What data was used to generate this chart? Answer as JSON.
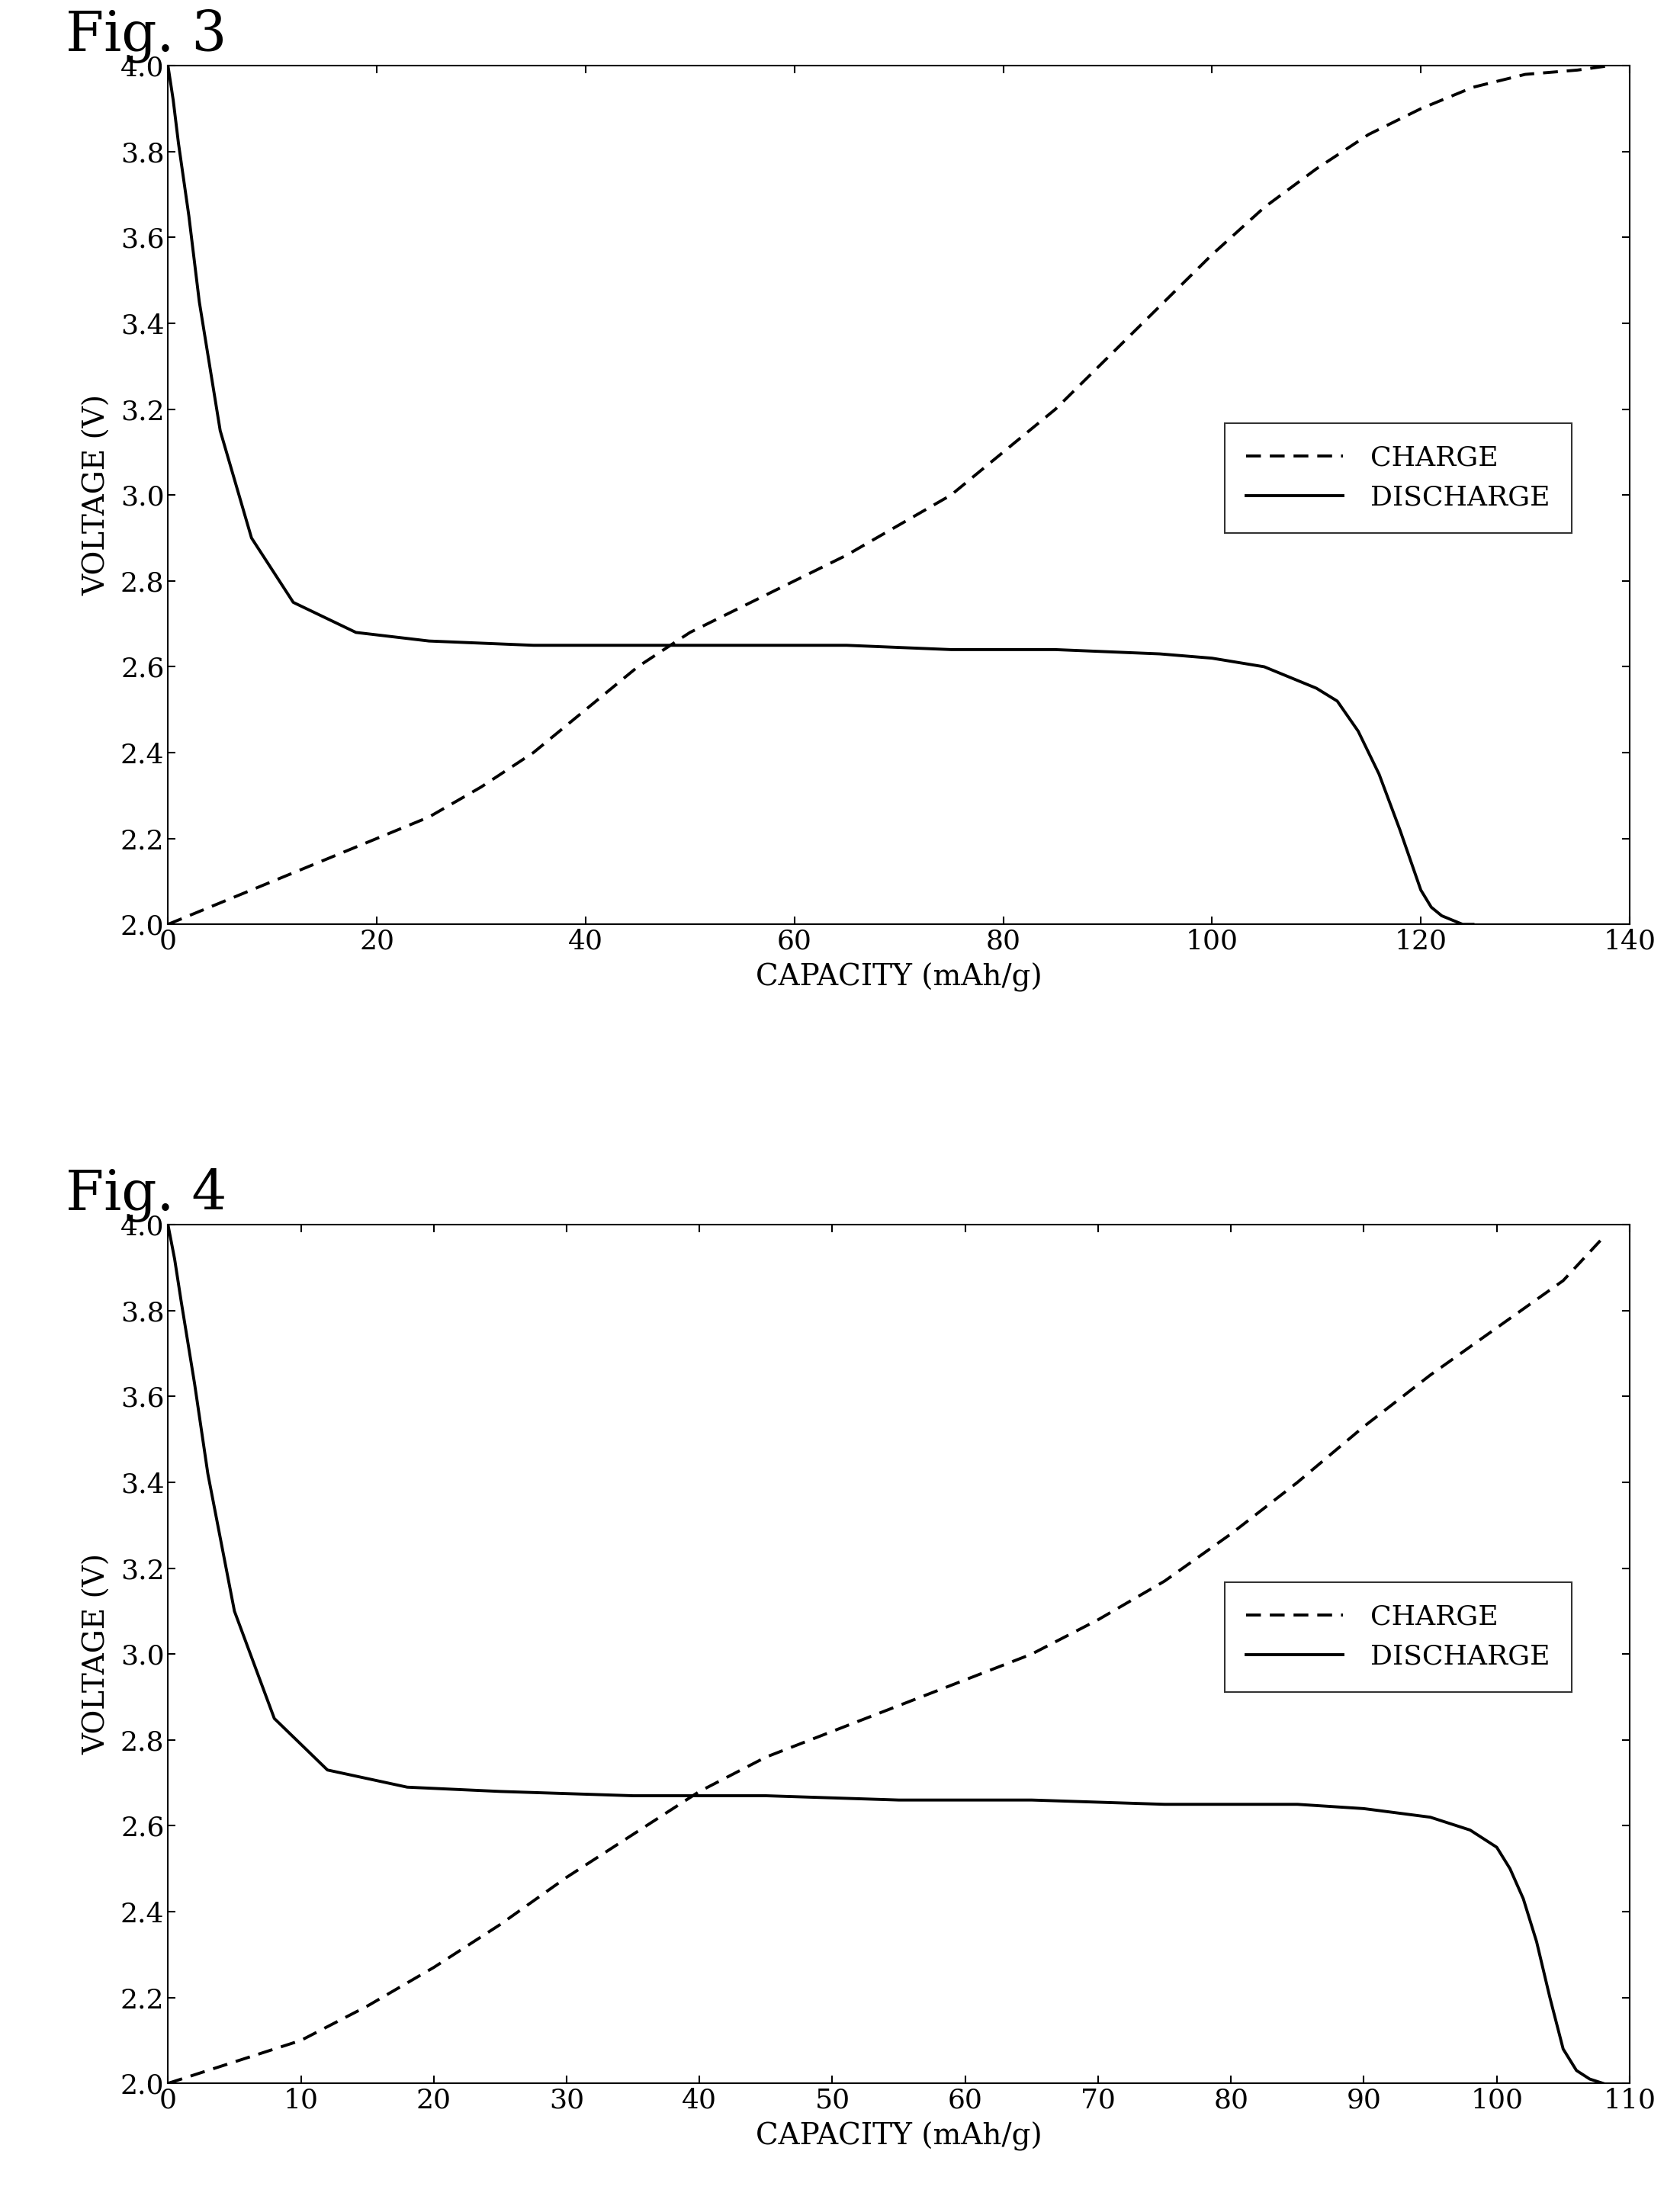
{
  "fig3": {
    "title": "Fig. 3",
    "charge_x": [
      0,
      5,
      10,
      15,
      20,
      25,
      30,
      35,
      40,
      45,
      50,
      55,
      60,
      65,
      70,
      75,
      80,
      85,
      90,
      95,
      100,
      105,
      110,
      115,
      120,
      125,
      130,
      135,
      138
    ],
    "charge_y": [
      2.0,
      2.05,
      2.1,
      2.15,
      2.2,
      2.25,
      2.32,
      2.4,
      2.5,
      2.6,
      2.68,
      2.74,
      2.8,
      2.86,
      2.93,
      3.0,
      3.1,
      3.2,
      3.32,
      3.44,
      3.56,
      3.67,
      3.76,
      3.84,
      3.9,
      3.95,
      3.98,
      3.99,
      4.0
    ],
    "discharge_x": [
      0,
      0.5,
      1,
      2,
      3,
      5,
      8,
      12,
      18,
      25,
      35,
      45,
      55,
      65,
      75,
      85,
      95,
      100,
      105,
      108,
      110,
      112,
      114,
      116,
      118,
      120,
      121,
      122,
      123,
      124,
      125
    ],
    "discharge_y": [
      4.0,
      3.92,
      3.82,
      3.65,
      3.45,
      3.15,
      2.9,
      2.75,
      2.68,
      2.66,
      2.65,
      2.65,
      2.65,
      2.65,
      2.64,
      2.64,
      2.63,
      2.62,
      2.6,
      2.57,
      2.55,
      2.52,
      2.45,
      2.35,
      2.22,
      2.08,
      2.04,
      2.02,
      2.01,
      2.0,
      2.0
    ],
    "xlim": [
      0,
      140
    ],
    "ylim": [
      2.0,
      4.0
    ],
    "xticks": [
      0,
      20,
      40,
      60,
      80,
      100,
      120,
      140
    ],
    "yticks": [
      2.0,
      2.2,
      2.4,
      2.6,
      2.8,
      3.0,
      3.2,
      3.4,
      3.6,
      3.8,
      4.0
    ],
    "xlabel": "CAPACITY (mAh/g)",
    "ylabel": "VOLTAGE (V)",
    "legend_charge": "CHARGE",
    "legend_discharge": "DISCHARGE"
  },
  "fig4": {
    "title": "Fig. 4",
    "charge_x": [
      0,
      5,
      10,
      15,
      20,
      25,
      30,
      35,
      40,
      45,
      50,
      55,
      60,
      65,
      70,
      75,
      80,
      85,
      90,
      95,
      100,
      105,
      108
    ],
    "charge_y": [
      2.0,
      2.05,
      2.1,
      2.18,
      2.27,
      2.37,
      2.48,
      2.58,
      2.68,
      2.76,
      2.82,
      2.88,
      2.94,
      3.0,
      3.08,
      3.17,
      3.28,
      3.4,
      3.53,
      3.65,
      3.76,
      3.87,
      3.97
    ],
    "discharge_x": [
      0,
      0.5,
      1,
      2,
      3,
      5,
      8,
      12,
      18,
      25,
      35,
      45,
      55,
      65,
      75,
      85,
      90,
      95,
      98,
      100,
      101,
      102,
      103,
      104,
      105,
      106,
      107,
      108
    ],
    "discharge_y": [
      4.0,
      3.92,
      3.82,
      3.63,
      3.42,
      3.1,
      2.85,
      2.73,
      2.69,
      2.68,
      2.67,
      2.67,
      2.66,
      2.66,
      2.65,
      2.65,
      2.64,
      2.62,
      2.59,
      2.55,
      2.5,
      2.43,
      2.33,
      2.2,
      2.08,
      2.03,
      2.01,
      2.0
    ],
    "xlim": [
      0,
      110
    ],
    "ylim": [
      2.0,
      4.0
    ],
    "xticks": [
      0,
      10,
      20,
      30,
      40,
      50,
      60,
      70,
      80,
      90,
      100,
      110
    ],
    "yticks": [
      2.0,
      2.2,
      2.4,
      2.6,
      2.8,
      3.0,
      3.2,
      3.4,
      3.6,
      3.8,
      4.0
    ],
    "xlabel": "CAPACITY (mAh/g)",
    "ylabel": "VOLTAGE (V)",
    "legend_charge": "CHARGE",
    "legend_discharge": "DISCHARGE"
  },
  "bg_color": "#ffffff",
  "line_color": "#000000",
  "title_fontsize": 52,
  "label_fontsize": 28,
  "tick_fontsize": 26,
  "legend_fontsize": 26,
  "line_width": 2.8
}
